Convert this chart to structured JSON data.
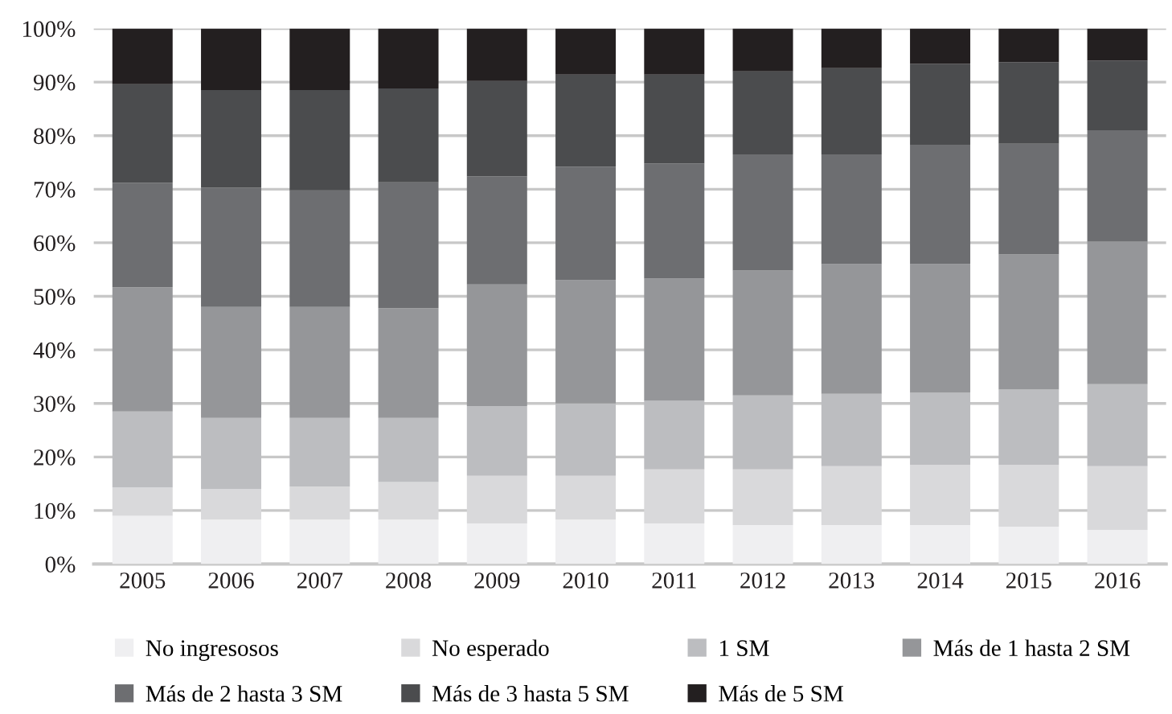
{
  "chart_data": {
    "type": "bar",
    "stacked": true,
    "categories": [
      "2005",
      "2006",
      "2007",
      "2008",
      "2009",
      "2010",
      "2011",
      "2012",
      "2013",
      "2014",
      "2015",
      "2016"
    ],
    "series": [
      {
        "name": "No ingresosos",
        "color": "#efeff1",
        "values": [
          9,
          8.3,
          8.3,
          8.3,
          7.6,
          8.3,
          7.6,
          7.3,
          7.3,
          7.3,
          7.0,
          6.4
        ]
      },
      {
        "name": "No esperado",
        "color": "#d9d9db",
        "values": [
          5.3,
          5.7,
          6.2,
          7.0,
          8.9,
          8.2,
          10.1,
          10.4,
          11.0,
          11.2,
          11.5,
          11.9
        ]
      },
      {
        "name": "1 SM",
        "color": "#bcbdc0",
        "values": [
          14.2,
          13.3,
          12.8,
          12.0,
          13.0,
          13.5,
          12.8,
          13.8,
          13.5,
          13.5,
          14.1,
          15.3
        ]
      },
      {
        "name": "Más de 1 hasta 2 SM",
        "color": "#959699",
        "values": [
          23.2,
          20.7,
          20.7,
          20.5,
          22.7,
          23.0,
          22.8,
          23.3,
          24.2,
          24.0,
          25.2,
          26.6
        ]
      },
      {
        "name": "Más de 2 hasta 3 SM",
        "color": "#6d6e71",
        "values": [
          19.5,
          22.3,
          21.8,
          23.5,
          20.2,
          21.2,
          21.5,
          21.7,
          20.5,
          22.3,
          20.7,
          20.8
        ]
      },
      {
        "name": "Más de 3 hasta 5 SM",
        "color": "#4b4c4e",
        "values": [
          18.4,
          18.2,
          18.7,
          17.5,
          17.8,
          17.2,
          16.6,
          15.5,
          16.1,
          15.1,
          15.2,
          13.0
        ]
      },
      {
        "name": "Más de 5 SM",
        "color": "#231f20",
        "values": [
          10.4,
          11.5,
          11.5,
          11.2,
          9.8,
          8.6,
          8.6,
          8.0,
          7.4,
          6.6,
          6.3,
          6.0
        ]
      }
    ],
    "ylim": [
      0,
      100
    ],
    "yticks": [
      {
        "value": 0,
        "label": "0%"
      },
      {
        "value": 10,
        "label": "10%"
      },
      {
        "value": 20,
        "label": "20%"
      },
      {
        "value": 30,
        "label": "30%"
      },
      {
        "value": 40,
        "label": "40%"
      },
      {
        "value": 50,
        "label": "50%"
      },
      {
        "value": 60,
        "label": "60%"
      },
      {
        "value": 70,
        "label": "70%"
      },
      {
        "value": 80,
        "label": "80%"
      },
      {
        "value": 90,
        "label": "90%"
      },
      {
        "value": 100,
        "label": "100%"
      }
    ],
    "grid": "y",
    "legend": "bottom"
  }
}
